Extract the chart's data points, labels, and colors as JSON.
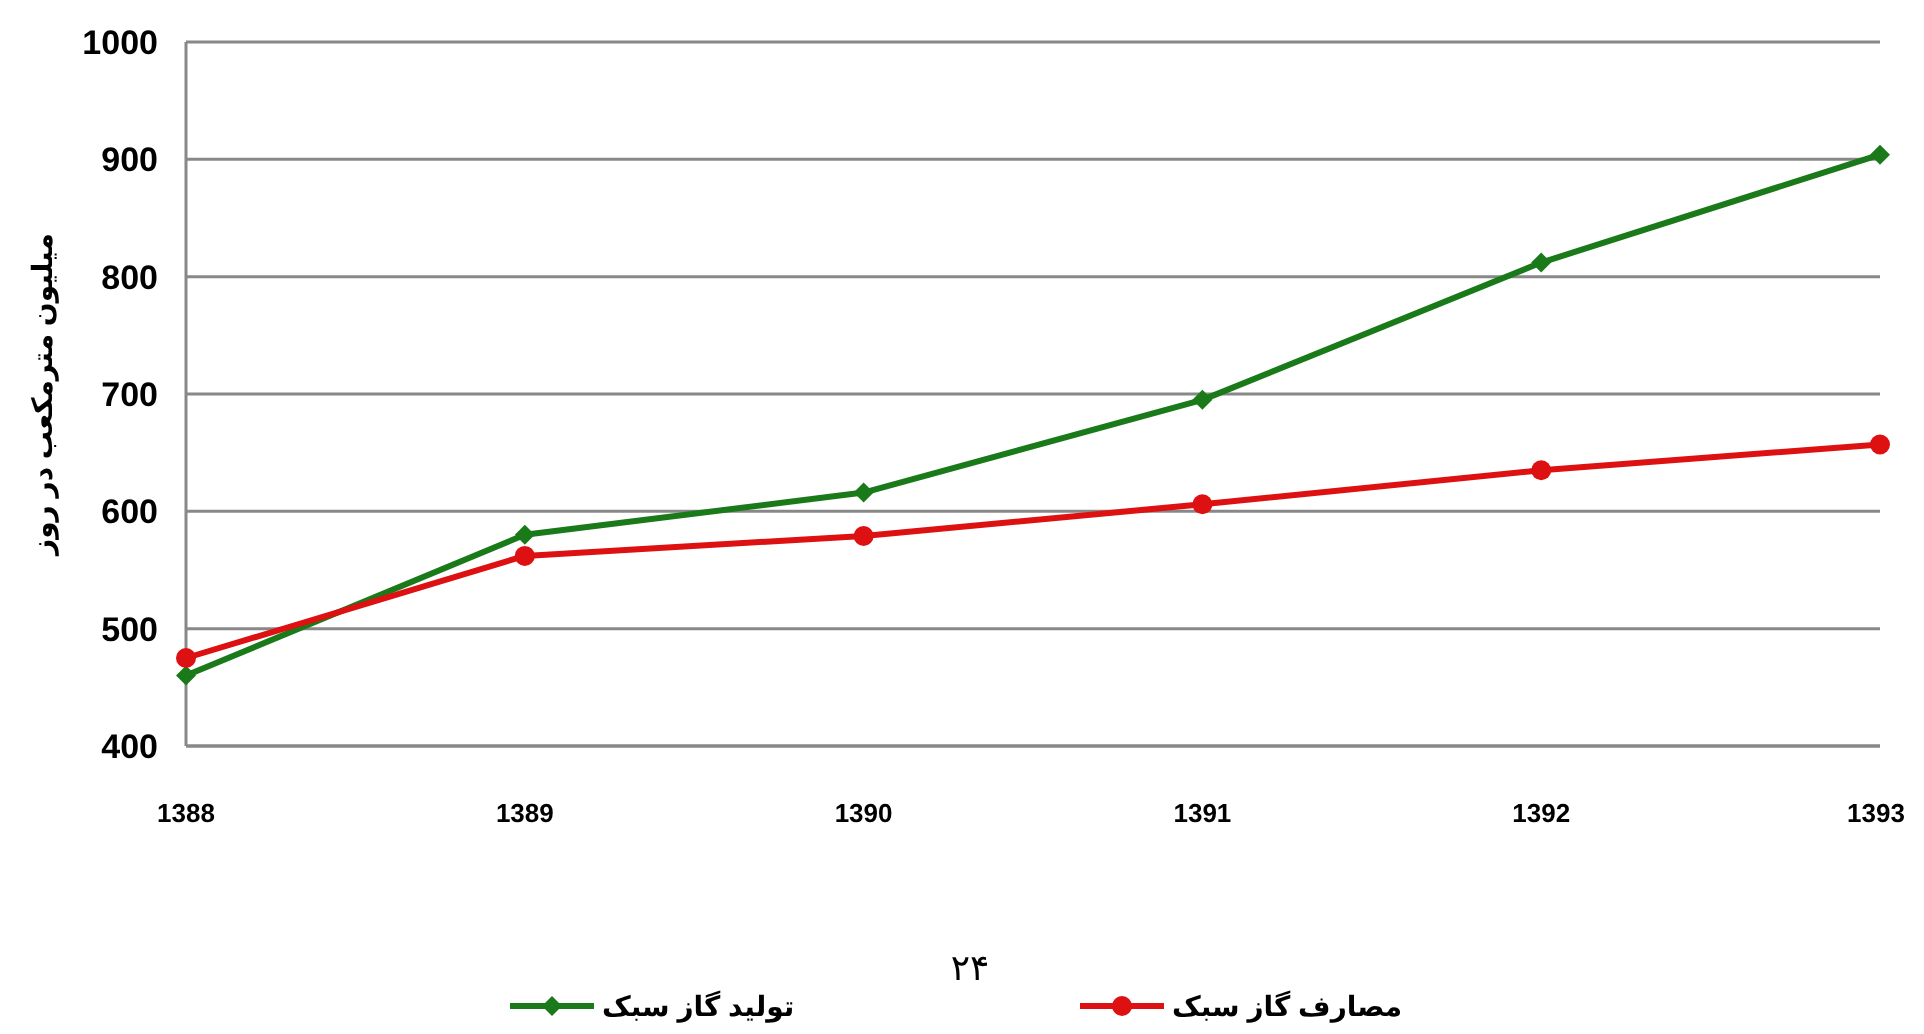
{
  "chart_data": {
    "type": "line",
    "ylabel": "میلیون مترمکعب در روز",
    "categories": [
      "1388",
      "1389",
      "1390",
      "1391",
      "1392",
      "1393"
    ],
    "series": [
      {
        "name": "تولید گاز سبک",
        "color": "#1a7a1a",
        "marker": "diamond",
        "values": [
          460,
          580,
          616,
          695,
          812,
          904
        ]
      },
      {
        "name": "مصارف گاز سبک",
        "color": "#dd1111",
        "marker": "circle",
        "values": [
          475,
          562,
          579,
          606,
          635,
          657
        ]
      }
    ],
    "ylim": [
      400,
      1000
    ],
    "yticks": [
      400,
      500,
      600,
      700,
      800,
      900,
      1000
    ],
    "grid": "y",
    "legend": "bottom",
    "annotations": [
      "۲۴"
    ]
  }
}
